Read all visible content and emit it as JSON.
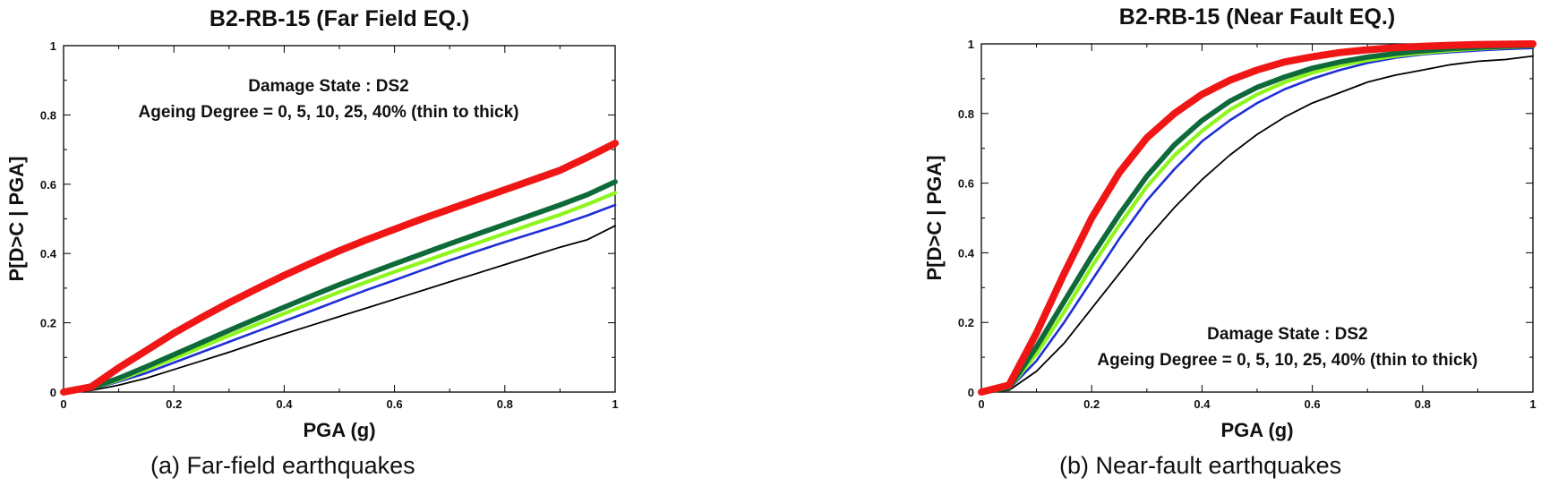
{
  "colors": {
    "ageing_0": "#000000",
    "ageing_5": "#1f2fd6",
    "ageing_10": "#8ef51f",
    "ageing_25": "#0f6a3a",
    "ageing_40": "#f01616"
  },
  "chart_data": [
    {
      "type": "line",
      "title": "B2-RB-15 (Far Field EQ.)",
      "caption": "(a) Far-field earthquakes",
      "xlabel": "PGA (g)",
      "ylabel": "P[D>C | PGA]",
      "xlim": [
        0,
        1
      ],
      "ylim": [
        0,
        1
      ],
      "xticks": [
        "0",
        "0.2",
        "0.4",
        "0.6",
        "0.8",
        "1"
      ],
      "yticks": [
        "0",
        "0.2",
        "0.4",
        "0.6",
        "0.8",
        "1"
      ],
      "grid": false,
      "annotation": [
        "Damage State : DS2",
        "Ageing Degree = 0, 5, 10, 25, 40% (thin to thick)"
      ],
      "annotation_placement": "top-center",
      "x": [
        0,
        0.05,
        0.1,
        0.15,
        0.2,
        0.25,
        0.3,
        0.35,
        0.4,
        0.45,
        0.5,
        0.55,
        0.6,
        0.65,
        0.7,
        0.75,
        0.8,
        0.85,
        0.9,
        0.95,
        1.0
      ],
      "series": [
        {
          "values": [
            0,
            0.005,
            0.02,
            0.04,
            0.065,
            0.09,
            0.115,
            0.142,
            0.168,
            0.193,
            0.218,
            0.243,
            0.268,
            0.293,
            0.318,
            0.343,
            0.368,
            0.393,
            0.418,
            0.44,
            0.48
          ]
        },
        {
          "values": [
            0,
            0.008,
            0.03,
            0.055,
            0.085,
            0.115,
            0.145,
            0.175,
            0.205,
            0.235,
            0.265,
            0.295,
            0.323,
            0.352,
            0.38,
            0.407,
            0.433,
            0.458,
            0.483,
            0.51,
            0.54
          ]
        },
        {
          "values": [
            0,
            0.01,
            0.035,
            0.065,
            0.097,
            0.13,
            0.163,
            0.195,
            0.227,
            0.258,
            0.289,
            0.318,
            0.347,
            0.375,
            0.403,
            0.43,
            0.458,
            0.485,
            0.512,
            0.542,
            0.575
          ]
        },
        {
          "values": [
            0,
            0.012,
            0.04,
            0.073,
            0.108,
            0.143,
            0.178,
            0.212,
            0.245,
            0.278,
            0.31,
            0.34,
            0.37,
            0.399,
            0.428,
            0.456,
            0.484,
            0.512,
            0.54,
            0.57,
            0.607
          ]
        },
        {
          "values": [
            0,
            0.015,
            0.07,
            0.12,
            0.17,
            0.215,
            0.258,
            0.298,
            0.337,
            0.373,
            0.408,
            0.44,
            0.47,
            0.5,
            0.528,
            0.556,
            0.584,
            0.612,
            0.64,
            0.678,
            0.718
          ]
        }
      ]
    },
    {
      "type": "line",
      "title": "B2-RB-15 (Near Fault EQ.)",
      "caption": "(b) Near-fault earthquakes",
      "xlabel": "PGA (g)",
      "ylabel": "P[D>C | PGA]",
      "xlim": [
        0,
        1
      ],
      "ylim": [
        0,
        1
      ],
      "xticks": [
        "0",
        "0.2",
        "0.4",
        "0.6",
        "0.8",
        "1"
      ],
      "yticks": [
        "0",
        "0.2",
        "0.4",
        "0.6",
        "0.8",
        "1"
      ],
      "grid": false,
      "annotation": [
        "Damage State : DS2",
        "Ageing Degree = 0, 5, 10, 25, 40% (thin to thick)"
      ],
      "annotation_placement": "bottom-right",
      "x": [
        0,
        0.05,
        0.1,
        0.15,
        0.2,
        0.25,
        0.3,
        0.35,
        0.4,
        0.45,
        0.5,
        0.55,
        0.6,
        0.65,
        0.7,
        0.75,
        0.8,
        0.85,
        0.9,
        0.95,
        1.0
      ],
      "series": [
        {
          "values": [
            0,
            0.005,
            0.06,
            0.14,
            0.24,
            0.34,
            0.44,
            0.53,
            0.61,
            0.68,
            0.74,
            0.79,
            0.83,
            0.86,
            0.89,
            0.91,
            0.925,
            0.94,
            0.95,
            0.955,
            0.965
          ]
        },
        {
          "values": [
            0,
            0.008,
            0.09,
            0.2,
            0.32,
            0.44,
            0.55,
            0.64,
            0.72,
            0.78,
            0.83,
            0.87,
            0.9,
            0.925,
            0.945,
            0.96,
            0.97,
            0.976,
            0.981,
            0.985,
            0.988
          ]
        },
        {
          "values": [
            0,
            0.01,
            0.11,
            0.23,
            0.36,
            0.48,
            0.59,
            0.68,
            0.75,
            0.81,
            0.855,
            0.89,
            0.917,
            0.938,
            0.953,
            0.965,
            0.974,
            0.981,
            0.986,
            0.99,
            0.993
          ]
        },
        {
          "values": [
            0,
            0.012,
            0.13,
            0.26,
            0.39,
            0.51,
            0.62,
            0.71,
            0.78,
            0.835,
            0.875,
            0.905,
            0.93,
            0.948,
            0.962,
            0.972,
            0.98,
            0.986,
            0.99,
            0.993,
            0.995
          ]
        },
        {
          "values": [
            0,
            0.02,
            0.17,
            0.34,
            0.5,
            0.63,
            0.73,
            0.8,
            0.855,
            0.895,
            0.925,
            0.948,
            0.963,
            0.975,
            0.983,
            0.989,
            0.993,
            0.996,
            0.998,
            0.999,
            1.0
          ]
        }
      ]
    }
  ]
}
